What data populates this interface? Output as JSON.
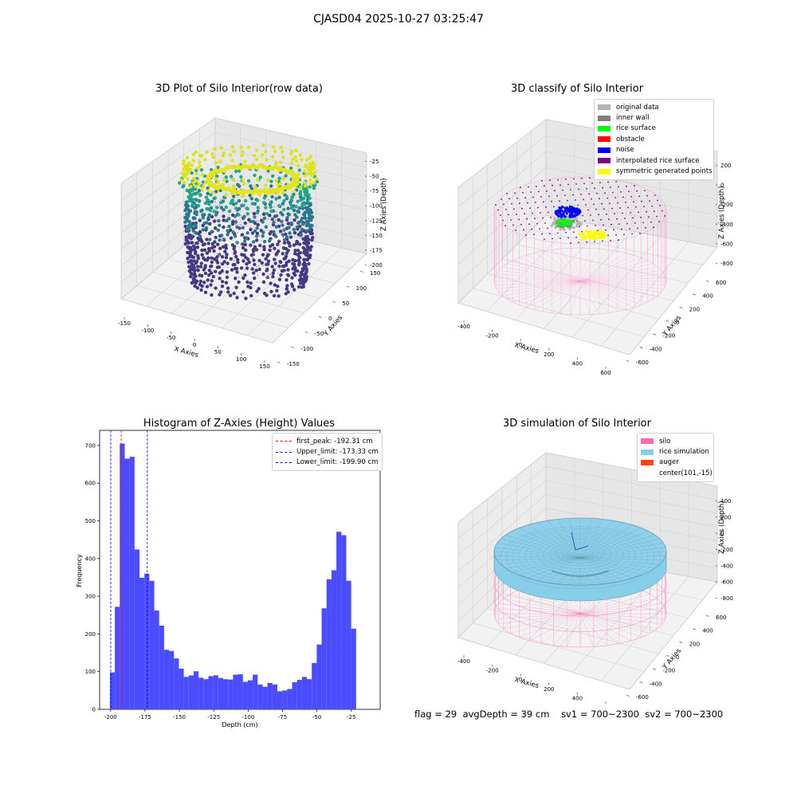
{
  "suptitle": "CJASD04 2025-10-27 03:25:47",
  "panels": {
    "raw": {
      "title": "3D Plot of Silo Interior(row data)",
      "xlabel": "X Axies",
      "ylabel": "Y Axies",
      "zlabel": "Z Axies (Depth)",
      "xticks": [
        "-150",
        "-100",
        "-50",
        "0",
        "50",
        "100",
        "150"
      ],
      "yticks": [
        "-150",
        "-100",
        "-50",
        "0",
        "50",
        "100",
        "150"
      ],
      "zticks": [
        "-25",
        "-50",
        "-75",
        "-100",
        "-125",
        "-150",
        "-175",
        "-200"
      ]
    },
    "classify": {
      "title": "3D classify of Silo Interior",
      "xlabel": "X Axies",
      "ylabel": "Y Axies",
      "zlabel": "Z Axies (Depth)",
      "xticks": [
        "-400",
        "-200",
        "0",
        "200",
        "400",
        "600"
      ],
      "yticks": [
        "-600",
        "-400",
        "-200",
        "0",
        "200",
        "400",
        "600"
      ],
      "zticks": [
        "200",
        "0",
        "-200",
        "-400",
        "-600",
        "-800"
      ],
      "legend": [
        {
          "label": "original data",
          "color": "#b3b3b3"
        },
        {
          "label": "inner wall",
          "color": "#808080"
        },
        {
          "label": "rice surface",
          "color": "#00ff00"
        },
        {
          "label": "obstacle",
          "color": "#ff0000"
        },
        {
          "label": "noise",
          "color": "#0000ff"
        },
        {
          "label": "interpolated rice surface",
          "color": "#800080"
        },
        {
          "label": "symmetric generated points",
          "color": "#ffff00"
        }
      ]
    },
    "simulation": {
      "title": "3D simulation of Silo Interior",
      "xlabel": "X Axies",
      "ylabel": "Y Axies",
      "zlabel": "Z Axies (Depth)",
      "xticks": [
        "-400",
        "-200",
        "0",
        "200",
        "400",
        "600"
      ],
      "yticks": [
        "-600",
        "-400",
        "-200",
        "0",
        "200",
        "400",
        "600"
      ],
      "zticks": [
        "400",
        "200",
        "0",
        "-200",
        "-400",
        "-600",
        "-800"
      ],
      "legend": [
        {
          "label": "silo",
          "color": "#ff69b4"
        },
        {
          "label": "rice simulation",
          "color": "#87ceeb"
        },
        {
          "label": "auger",
          "color": "#ff4500"
        },
        {
          "label": "center(101,-15)",
          "color": ""
        }
      ]
    }
  },
  "chart_data": {
    "type": "bar",
    "title": "Histogram of Z-Axies (Height) Values",
    "xlabel": "Depth (cm)",
    "ylabel": "Frequency",
    "xlim": [
      -208,
      -4
    ],
    "ylim": [
      0,
      740
    ],
    "xticks": [
      -200,
      -175,
      -150,
      -125,
      -100,
      -75,
      -50,
      -25
    ],
    "yticks": [
      0,
      100,
      200,
      300,
      400,
      500,
      600,
      700
    ],
    "bar_color": "#4b4bff",
    "bins": {
      "start": -200.5,
      "width": 3.58,
      "values": [
        98,
        272,
        705,
        665,
        670,
        424,
        349,
        360,
        341,
        262,
        222,
        158,
        155,
        135,
        108,
        86,
        90,
        101,
        84,
        80,
        88,
        90,
        83,
        80,
        79,
        92,
        93,
        73,
        77,
        92,
        66,
        60,
        70,
        66,
        48,
        50,
        54,
        72,
        78,
        86,
        80,
        123,
        172,
        268,
        345,
        369,
        471,
        462,
        341,
        214
      ]
    },
    "vlines": [
      {
        "x": -192.31,
        "color": "#ff0000",
        "label": "first_peak: -192.31 cm"
      },
      {
        "x": -173.33,
        "color": "#0000ff",
        "label": "Upper_limit: -173.33 cm"
      },
      {
        "x": -199.9,
        "color": "#0000ff",
        "label": "Lower_limit: -199.90 cm"
      }
    ],
    "legend_position": "top-right"
  },
  "status": {
    "flag": "flag = 29",
    "avg_depth": "avgDepth = 39 cm",
    "sv1": "sv1 = 700~2300",
    "sv2": "sv2 = 700~2300"
  }
}
